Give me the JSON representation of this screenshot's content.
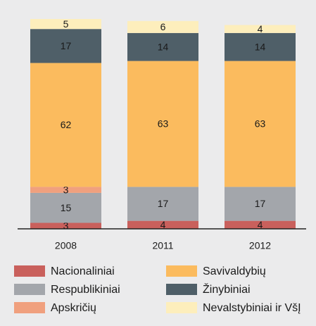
{
  "chart_data": {
    "type": "bar",
    "stacked": true,
    "categories": [
      "2008",
      "2011",
      "2012"
    ],
    "series": [
      {
        "name": "Nacionaliniai",
        "color": "#c9605c",
        "values": [
          3,
          4,
          4
        ]
      },
      {
        "name": "Respublikiniai",
        "color": "#a3a6ab",
        "values": [
          15,
          17,
          17
        ]
      },
      {
        "name": "Apskričių",
        "color": "#f0a07e",
        "values": [
          3,
          null,
          null
        ]
      },
      {
        "name": "Savivaldybių",
        "color": "#fbbb5e",
        "values": [
          62,
          63,
          63
        ]
      },
      {
        "name": "Žinybiniai",
        "color": "#4f5f68",
        "values": [
          17,
          14,
          14
        ]
      },
      {
        "name": "Nevalstybiniai ir VšĮ",
        "color": "#fdeebc",
        "values": [
          5,
          6,
          4
        ]
      }
    ]
  }
}
